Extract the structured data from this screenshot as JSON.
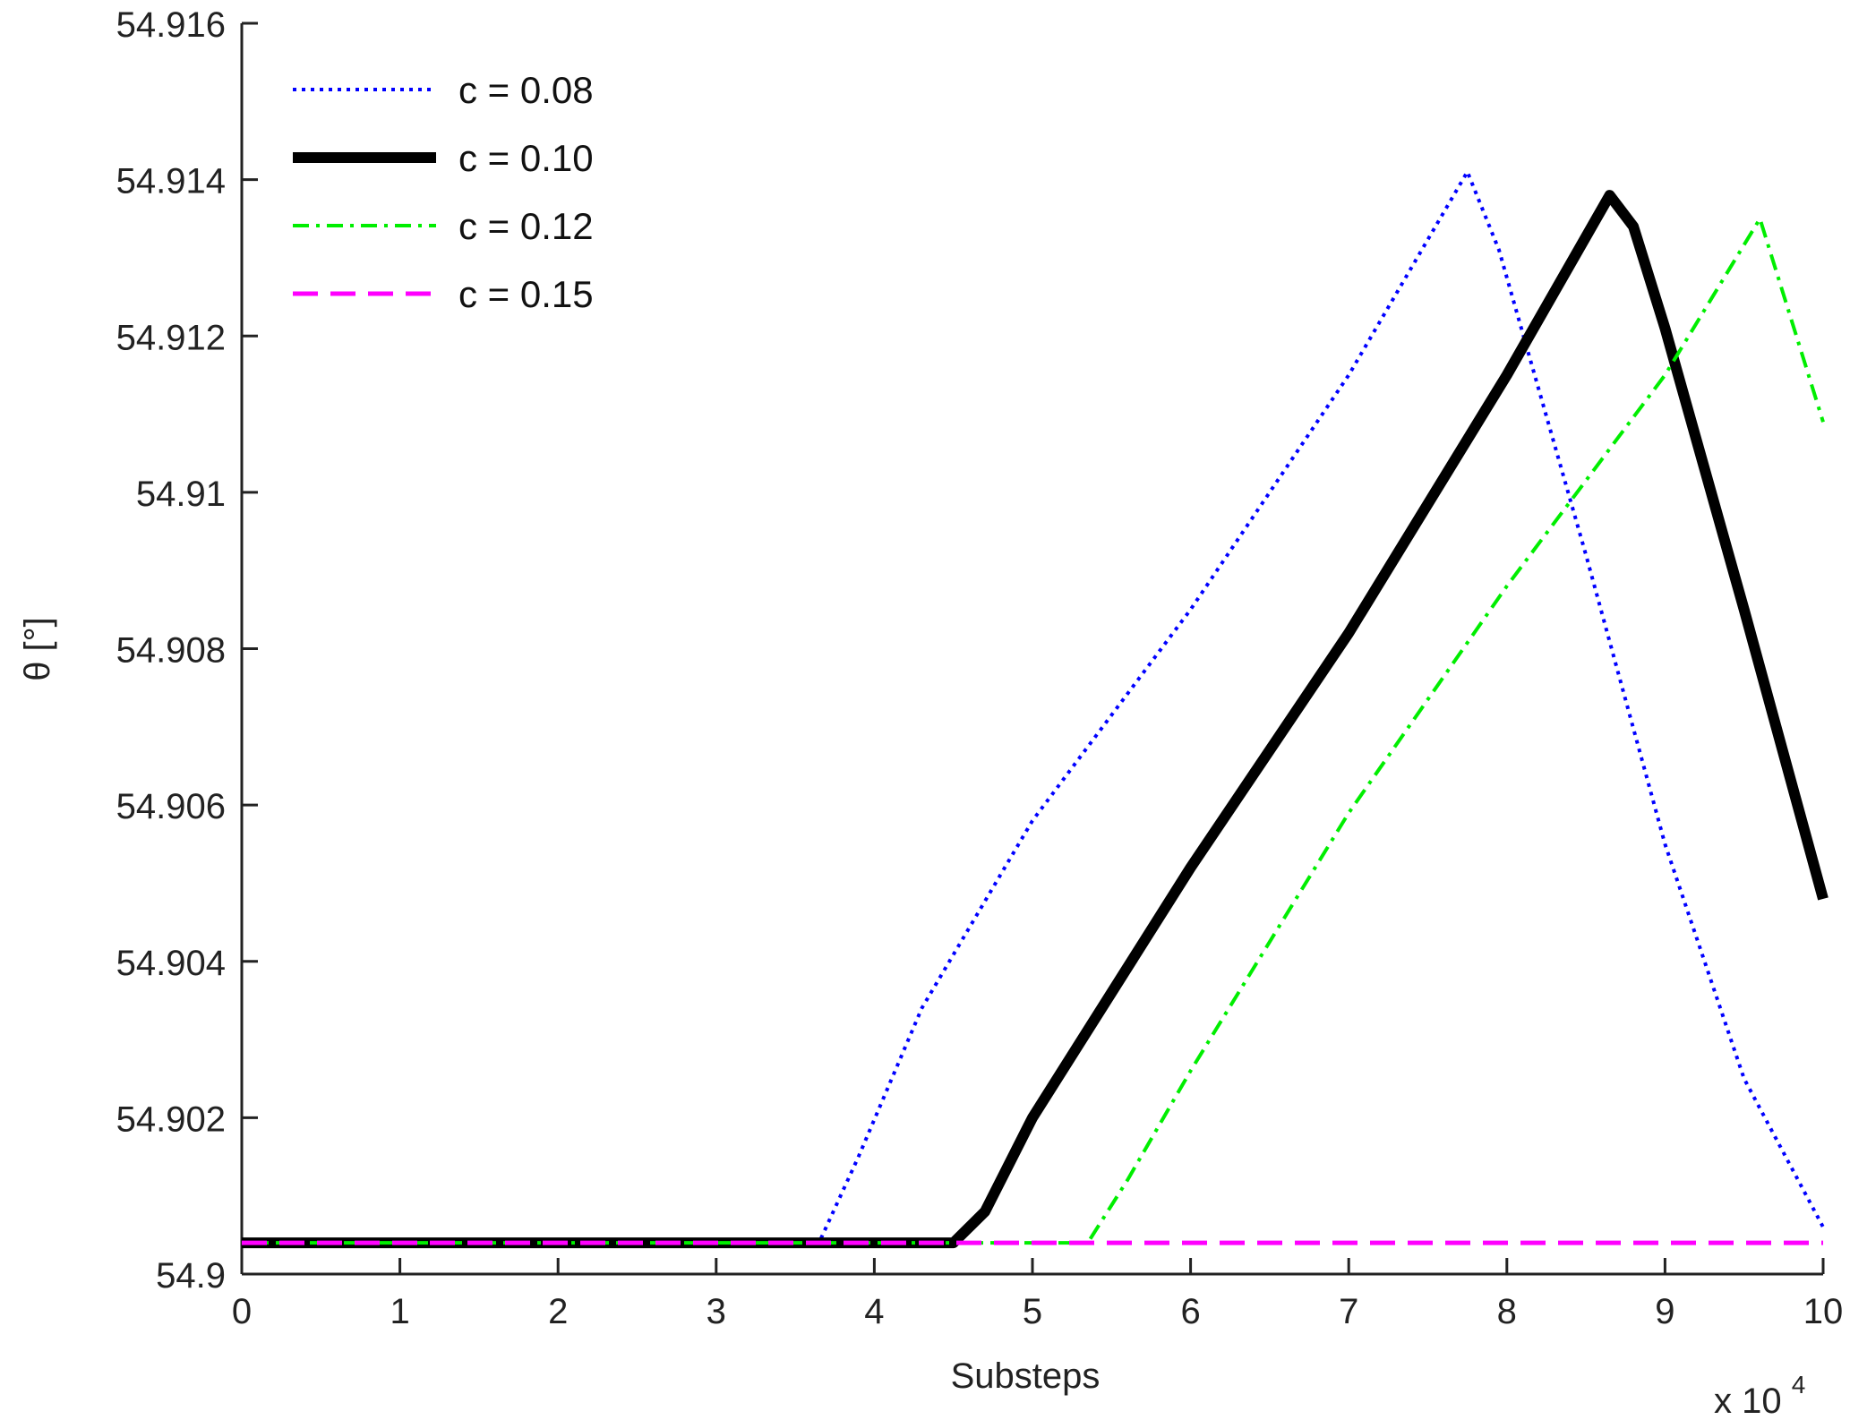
{
  "chart_data": {
    "type": "line",
    "xlabel": "Substeps",
    "ylabel": "θ [°]",
    "x_multiplier": "x 10",
    "x_multiplier_exp": "4",
    "xlim": [
      0,
      10
    ],
    "ylim": [
      54.9,
      54.916
    ],
    "x_ticks": [
      "0",
      "1",
      "2",
      "3",
      "4",
      "5",
      "6",
      "7",
      "8",
      "9",
      "10"
    ],
    "y_ticks": [
      "54.9",
      "54.902",
      "54.904",
      "54.906",
      "54.908",
      "54.91",
      "54.912",
      "54.914",
      "54.916"
    ],
    "legend_position": "top-left",
    "grid": false,
    "series": [
      {
        "name": "c = 0.08",
        "color": "#0000ff",
        "style": "dotted",
        "points": [
          [
            0,
            54.9004
          ],
          [
            3.65,
            54.9004
          ],
          [
            3.9,
            54.9015
          ],
          [
            4.3,
            54.9034
          ],
          [
            5.0,
            54.9058
          ],
          [
            6.0,
            54.9085
          ],
          [
            7.0,
            54.9115
          ],
          [
            7.75,
            54.9141
          ],
          [
            7.95,
            54.9131
          ],
          [
            8.5,
            54.9092
          ],
          [
            9.0,
            54.9055
          ],
          [
            9.5,
            54.9025
          ],
          [
            10.0,
            54.9006
          ]
        ]
      },
      {
        "name": "c = 0.10",
        "color": "#000000",
        "style": "solid-thick",
        "points": [
          [
            0,
            54.9004
          ],
          [
            4.5,
            54.9004
          ],
          [
            4.7,
            54.9008
          ],
          [
            5.0,
            54.902
          ],
          [
            6.0,
            54.9052
          ],
          [
            7.0,
            54.9082
          ],
          [
            8.0,
            54.9115
          ],
          [
            8.65,
            54.9138
          ],
          [
            8.8,
            54.9134
          ],
          [
            9.0,
            54.9121
          ],
          [
            9.5,
            54.9085
          ],
          [
            10.0,
            54.9048
          ]
        ]
      },
      {
        "name": "c = 0.12",
        "color": "#00ee00",
        "style": "dashdot",
        "points": [
          [
            0,
            54.9004
          ],
          [
            5.35,
            54.9004
          ],
          [
            5.6,
            54.9012
          ],
          [
            6.0,
            54.9026
          ],
          [
            7.0,
            54.9059
          ],
          [
            8.0,
            54.9088
          ],
          [
            9.0,
            54.9115
          ],
          [
            9.6,
            54.9135
          ],
          [
            10.0,
            54.9109
          ]
        ]
      },
      {
        "name": "c = 0.15",
        "color": "#ff00ff",
        "style": "dashed",
        "points": [
          [
            0,
            54.9004
          ],
          [
            10.0,
            54.9004
          ]
        ]
      }
    ]
  }
}
